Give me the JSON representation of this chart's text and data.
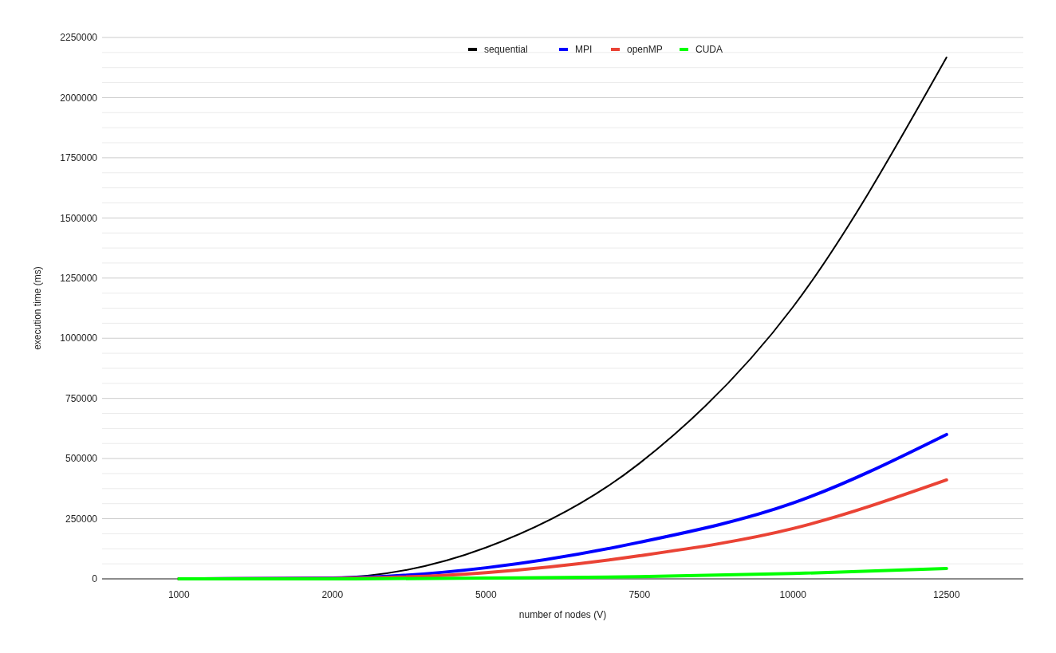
{
  "chart_data": {
    "type": "line",
    "xlabel": "number of nodes (V)",
    "ylabel": "execution time (ms)",
    "categories": [
      "1000",
      "2000",
      "5000",
      "7500",
      "10000",
      "12500"
    ],
    "series": [
      {
        "name": "sequential",
        "color": "#000000",
        "values": [
          0,
          5000,
          130000,
          480000,
          1130000,
          2167000
        ]
      },
      {
        "name": "MPI",
        "color": "#0000ff",
        "values": [
          0,
          3000,
          46000,
          152000,
          315000,
          600000
        ]
      },
      {
        "name": "openMP",
        "color": "#ea4335",
        "values": [
          0,
          2000,
          26000,
          96000,
          209000,
          411000
        ]
      },
      {
        "name": "CUDA",
        "color": "#00ff00",
        "values": [
          0,
          0,
          3000,
          9000,
          22000,
          43000
        ]
      }
    ],
    "ylim": [
      0,
      2250000
    ],
    "yticks": [
      0,
      {
        "value": 62500,
        "label": null
      },
      {
        "value": 125000,
        "label": null
      },
      {
        "value": 187500,
        "label": null
      },
      250000,
      {
        "value": 312500,
        "label": null
      },
      {
        "value": 375000,
        "label": null
      },
      {
        "value": 437500,
        "label": null
      },
      500000,
      {
        "value": 562500,
        "label": null
      },
      {
        "value": 625000,
        "label": null
      },
      {
        "value": 687500,
        "label": null
      },
      750000,
      {
        "value": 812500,
        "label": null
      },
      {
        "value": 875000,
        "label": null
      },
      {
        "value": 937500,
        "label": null
      },
      1000000,
      {
        "value": 1062500,
        "label": null
      },
      {
        "value": 1125000,
        "label": null
      },
      {
        "value": 1187500,
        "label": null
      },
      1250000,
      {
        "value": 1312500,
        "label": null
      },
      {
        "value": 1375000,
        "label": null
      },
      {
        "value": 1437500,
        "label": null
      },
      1500000,
      {
        "value": 1562500,
        "label": null
      },
      {
        "value": 1625000,
        "label": null
      },
      {
        "value": 1687500,
        "label": null
      },
      1750000,
      {
        "value": 1812500,
        "label": null
      },
      {
        "value": 1875000,
        "label": null
      },
      {
        "value": 1937500,
        "label": null
      },
      2000000,
      {
        "value": 2062500,
        "label": null
      },
      {
        "value": 2125000,
        "label": null
      },
      {
        "value": 2187500,
        "label": null
      },
      2250000
    ],
    "grid": "y",
    "legend": "top",
    "marker": "none",
    "line_style": "solid"
  }
}
